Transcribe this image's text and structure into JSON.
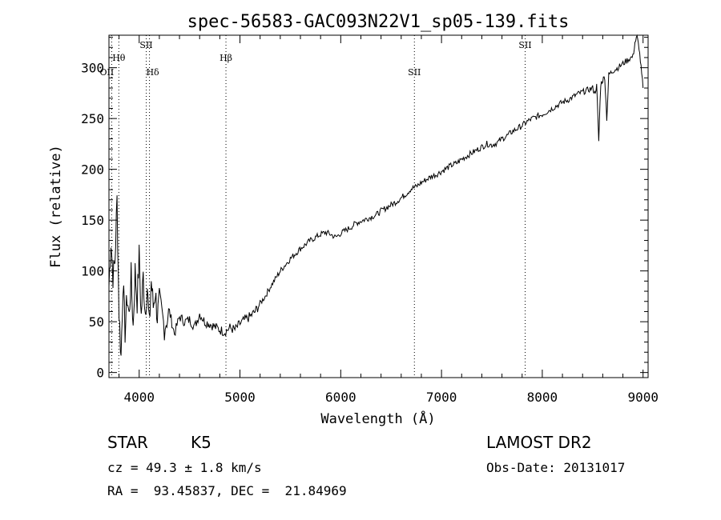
{
  "chart_data": {
    "type": "line",
    "title": "spec-56583-GAC093N22V1_sp05-139.fits",
    "xlabel": "Wavelength (Å)",
    "ylabel": "Flux (relative)",
    "xlim": [
      3700,
      9050
    ],
    "ylim": [
      -5,
      332
    ],
    "xticks": [
      4000,
      5000,
      6000,
      7000,
      8000,
      9000
    ],
    "yticks": [
      0,
      50,
      100,
      150,
      200,
      250,
      300
    ],
    "grid": false,
    "series": [
      {
        "x": [
          3700,
          3720,
          3740,
          3760,
          3780,
          3800,
          3820,
          3840,
          3860,
          3880,
          3900,
          3920,
          3940,
          3960,
          3980,
          4000,
          4020,
          4040,
          4060,
          4080,
          4100,
          4120,
          4140,
          4160,
          4180,
          4200,
          4250,
          4300,
          4350,
          4400,
          4450,
          4500,
          4550,
          4600,
          4650,
          4700,
          4750,
          4800,
          4850,
          4900,
          4950,
          5000,
          5050,
          5100,
          5150,
          5200,
          5250,
          5300,
          5350,
          5400,
          5450,
          5500,
          5550,
          5600,
          5650,
          5700,
          5750,
          5800,
          5850,
          5900,
          5950,
          6000,
          6050,
          6100,
          6150,
          6200,
          6250,
          6300,
          6350,
          6400,
          6450,
          6500,
          6550,
          6600,
          6650,
          6700,
          6750,
          6800,
          6850,
          6900,
          6950,
          7000,
          7050,
          7100,
          7150,
          7200,
          7250,
          7300,
          7350,
          7400,
          7450,
          7500,
          7550,
          7600,
          7650,
          7700,
          7750,
          7800,
          7850,
          7900,
          7950,
          8000,
          8050,
          8100,
          8150,
          8200,
          8250,
          8300,
          8350,
          8400,
          8450,
          8500,
          8520,
          8540,
          8560,
          8580,
          8600,
          8620,
          8640,
          8660,
          8680,
          8700,
          8750,
          8800,
          8850,
          8900,
          8920,
          8940,
          8960,
          8980,
          9000
        ],
        "values": [
          85,
          130,
          95,
          110,
          170,
          60,
          15,
          90,
          40,
          75,
          55,
          95,
          45,
          100,
          70,
          115,
          55,
          95,
          60,
          85,
          45,
          90,
          65,
          80,
          55,
          70,
          45,
          60,
          38,
          55,
          50,
          52,
          45,
          58,
          50,
          48,
          45,
          42,
          40,
          44,
          42,
          48,
          52,
          55,
          60,
          68,
          75,
          84,
          92,
          100,
          106,
          112,
          117,
          122,
          126,
          130,
          133,
          136,
          138,
          136,
          133,
          137,
          140,
          143,
          147,
          149,
          151,
          153,
          155,
          159,
          162,
          165,
          168,
          172,
          176,
          181,
          183,
          187,
          190,
          193,
          195,
          198,
          201,
          204,
          206,
          210,
          213,
          216,
          219,
          222,
          225,
          224,
          226,
          230,
          233,
          237,
          240,
          243,
          247,
          250,
          252,
          254,
          257,
          260,
          263,
          266,
          268,
          271,
          274,
          276,
          278,
          280,
          275,
          282,
          228,
          284,
          288,
          291,
          250,
          293,
          295,
          297,
          300,
          304,
          308,
          311,
          325,
          330,
          320,
          300,
          280
        ]
      }
    ],
    "line_labels": [
      {
        "name": "Hθ",
        "x": 3798
      },
      {
        "name": "OII",
        "x": 3727
      },
      {
        "name": "SII",
        "x": 4070
      },
      {
        "name": "Hδ",
        "x": 4102
      },
      {
        "name": "Hβ",
        "x": 4861
      },
      {
        "name": "SII",
        "x": 6731
      },
      {
        "name": "SII",
        "x": 7830
      }
    ],
    "annotations": {
      "class": "STAR",
      "subclass": "K5",
      "survey": "LAMOST DR2",
      "cz": "cz = 49.3 ± 1.8 km/s",
      "obs_date": "Obs-Date: 20131017",
      "coords": "RA =  93.45837, DEC =  21.84969"
    }
  }
}
